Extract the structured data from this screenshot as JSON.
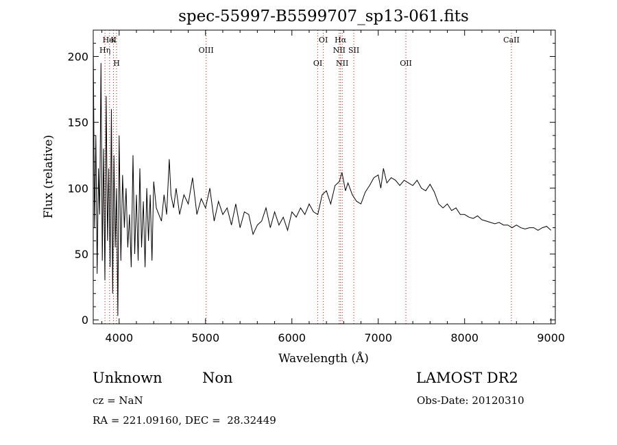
{
  "chart_data": {
    "type": "line",
    "title": "spec-55997-B5599707_sp13-061.fits",
    "xlabel": "Wavelength (Å)",
    "ylabel": "Flux (relative)",
    "xlim": [
      3700,
      9050
    ],
    "ylim": [
      -3,
      220
    ],
    "xticks": [
      4000,
      5000,
      6000,
      7000,
      8000,
      9000
    ],
    "yticks": [
      0,
      50,
      100,
      150,
      200
    ],
    "grid": false,
    "series": [
      {
        "line_color": "#000000",
        "x": [
          3700,
          3715,
          3730,
          3745,
          3760,
          3775,
          3790,
          3805,
          3820,
          3835,
          3850,
          3865,
          3880,
          3895,
          3910,
          3925,
          3940,
          3955,
          3970,
          3985,
          4000,
          4020,
          4040,
          4060,
          4080,
          4100,
          4120,
          4140,
          4160,
          4180,
          4200,
          4220,
          4240,
          4260,
          4280,
          4300,
          4320,
          4340,
          4360,
          4380,
          4400,
          4430,
          4460,
          4490,
          4520,
          4550,
          4580,
          4600,
          4630,
          4660,
          4700,
          4750,
          4800,
          4850,
          4900,
          4950,
          5000,
          5050,
          5100,
          5150,
          5200,
          5250,
          5300,
          5350,
          5400,
          5450,
          5500,
          5550,
          5600,
          5650,
          5700,
          5750,
          5800,
          5850,
          5900,
          5950,
          6000,
          6050,
          6100,
          6150,
          6200,
          6250,
          6300,
          6350,
          6400,
          6450,
          6500,
          6550,
          6580,
          6620,
          6650,
          6700,
          6750,
          6800,
          6850,
          6900,
          6950,
          7000,
          7030,
          7060,
          7100,
          7150,
          7200,
          7250,
          7300,
          7350,
          7400,
          7450,
          7500,
          7550,
          7600,
          7650,
          7700,
          7750,
          7800,
          7850,
          7900,
          7950,
          8000,
          8050,
          8100,
          8150,
          8200,
          8250,
          8300,
          8350,
          8400,
          8450,
          8500,
          8550,
          8600,
          8650,
          8700,
          8750,
          8800,
          8850,
          8900,
          8950,
          9000
        ],
        "values": [
          210,
          70,
          140,
          35,
          115,
          80,
          195,
          45,
          130,
          30,
          170,
          60,
          115,
          40,
          160,
          20,
          125,
          55,
          100,
          3,
          140,
          45,
          110,
          70,
          100,
          55,
          80,
          40,
          125,
          50,
          95,
          45,
          115,
          55,
          90,
          40,
          100,
          60,
          95,
          45,
          105,
          85,
          80,
          75,
          95,
          80,
          122,
          95,
          85,
          100,
          80,
          95,
          88,
          108,
          80,
          92,
          85,
          100,
          75,
          90,
          80,
          85,
          72,
          88,
          70,
          82,
          80,
          65,
          72,
          75,
          85,
          70,
          82,
          72,
          78,
          68,
          82,
          78,
          85,
          80,
          88,
          82,
          80,
          95,
          98,
          88,
          102,
          105,
          112,
          98,
          104,
          95,
          90,
          88,
          97,
          102,
          108,
          110,
          100,
          115,
          104,
          108,
          106,
          102,
          106,
          104,
          102,
          106,
          100,
          98,
          103,
          97,
          88,
          85,
          88,
          83,
          85,
          80,
          80,
          78,
          77,
          79,
          76,
          75,
          74,
          73,
          74,
          72,
          72,
          70,
          72,
          70,
          69,
          70,
          70,
          68,
          70,
          71,
          68
        ]
      }
    ],
    "emission_lines": [
      {
        "name": "HeI",
        "x": 3889
      },
      {
        "name": "Hη",
        "x": 3836
      },
      {
        "name": "H",
        "x": 3970
      },
      {
        "name": "K",
        "x": 3934
      },
      {
        "name": "OIII",
        "x": 5007
      },
      {
        "name": "OI",
        "x": 6300
      },
      {
        "name": "OI",
        "x": 6364
      },
      {
        "name": "NII",
        "x": 6548
      },
      {
        "name": "NII",
        "x": 6583
      },
      {
        "name": "Hα",
        "x": 6563
      },
      {
        "name": "SII",
        "x": 6717
      },
      {
        "name": "OII",
        "x": 7320
      },
      {
        "name": "CaII",
        "x": 8542
      }
    ],
    "emission_line_color": "#e00000"
  },
  "info": {
    "class_label": "Unknown",
    "subclass_label": "Non",
    "survey": "LAMOST DR2",
    "cz": "cz = NaN",
    "obs_date": "Obs-Date: 20120310",
    "coords": "RA = 221.09160, DEC =  28.32449"
  }
}
